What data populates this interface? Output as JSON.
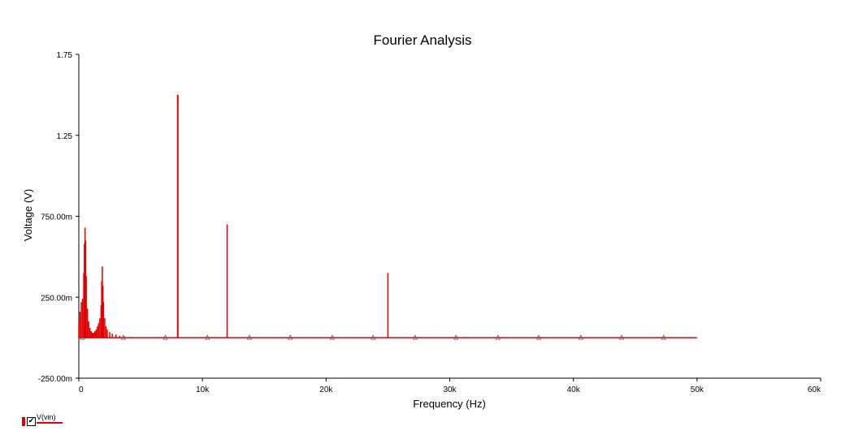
{
  "colors": {
    "series": "#e00000",
    "axis": "#000000",
    "background": "#ffffff"
  },
  "legend": {
    "label": "V(vin)",
    "checked": true,
    "check_glyph": "✔"
  },
  "chart_data": {
    "type": "line",
    "title": "Fourier Analysis",
    "xlabel": "Frequency (Hz)",
    "ylabel": "Voltage (V)",
    "xlim": [
      0,
      60000
    ],
    "ylim": [
      -0.25,
      1.75
    ],
    "x_ticks": [
      0,
      10000,
      20000,
      30000,
      40000,
      50000,
      60000
    ],
    "x_tick_labels": [
      "0",
      "10k",
      "20k",
      "30k",
      "40k",
      "50k",
      "60k"
    ],
    "y_ticks": [
      -0.25,
      0.25,
      0.75,
      1.25,
      1.75
    ],
    "y_tick_labels": [
      "-250.00m",
      "250.00m",
      "750.00m",
      "1.25",
      "1.75"
    ],
    "grid": false,
    "legend_position": "bottom-left",
    "series": [
      {
        "name": "V(vin)",
        "baseline": 0,
        "x_range": [
          0,
          50000
        ],
        "points": [
          [
            0,
            0.1
          ],
          [
            100,
            0.16
          ],
          [
            200,
            0.22
          ],
          [
            300,
            0.24
          ],
          [
            400,
            0.4
          ],
          [
            450,
            0.58
          ],
          [
            500,
            0.68
          ],
          [
            550,
            0.6
          ],
          [
            600,
            0.38
          ],
          [
            700,
            0.18
          ],
          [
            800,
            0.1
          ],
          [
            900,
            0.06
          ],
          [
            1000,
            0.04
          ],
          [
            1100,
            0.03
          ],
          [
            1200,
            0.03
          ],
          [
            1300,
            0.04
          ],
          [
            1400,
            0.05
          ],
          [
            1500,
            0.07
          ],
          [
            1600,
            0.09
          ],
          [
            1700,
            0.12
          ],
          [
            1800,
            0.2
          ],
          [
            1850,
            0.35
          ],
          [
            1900,
            0.44
          ],
          [
            1950,
            0.32
          ],
          [
            2000,
            0.22
          ],
          [
            2100,
            0.12
          ],
          [
            2200,
            0.07
          ],
          [
            2300,
            0.05
          ],
          [
            2500,
            0.035
          ],
          [
            2700,
            0.025
          ],
          [
            3000,
            0.02
          ],
          [
            3300,
            0.012
          ],
          [
            3700,
            0.008
          ],
          [
            4200,
            0.004
          ],
          [
            8000,
            1.5
          ],
          [
            12000,
            0.7
          ],
          [
            25000,
            0.4
          ]
        ],
        "markers_x": [
          300,
          3600,
          7000,
          10400,
          13800,
          17100,
          20500,
          23800,
          27200,
          30500,
          33900,
          37200,
          40600,
          43900,
          47300
        ]
      }
    ]
  }
}
